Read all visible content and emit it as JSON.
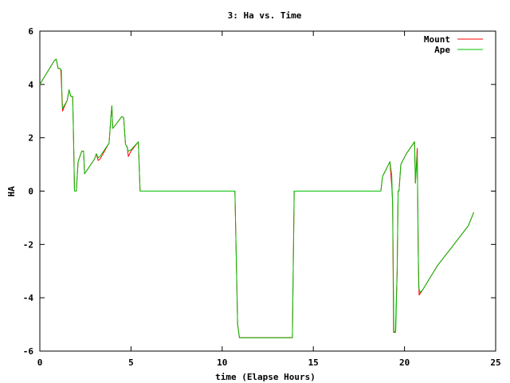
{
  "chart_data": {
    "type": "line",
    "title": "3: Ha vs. Time",
    "xlabel": "time (Elapse Hours)",
    "ylabel": "HA",
    "xlim": [
      0,
      25
    ],
    "ylim": [
      -6,
      6
    ],
    "xticks": [
      0,
      5,
      10,
      15,
      20,
      25
    ],
    "yticks": [
      -6,
      -4,
      -2,
      0,
      2,
      4,
      6
    ],
    "grid": false,
    "legend_position": "top-right",
    "series": [
      {
        "name": "Mount",
        "color": "#ff0000",
        "points": [
          [
            0,
            4.0
          ],
          [
            0.8,
            4.9
          ],
          [
            0.9,
            4.95
          ],
          [
            1.0,
            4.6
          ],
          [
            1.1,
            4.6
          ],
          [
            1.15,
            4.55
          ],
          [
            1.2,
            3.8
          ],
          [
            1.25,
            3.0
          ],
          [
            1.3,
            3.1
          ],
          [
            1.5,
            3.4
          ],
          [
            1.6,
            3.8
          ],
          [
            1.7,
            3.55
          ],
          [
            1.8,
            3.55
          ],
          [
            1.85,
            2.0
          ],
          [
            1.9,
            0.0
          ],
          [
            2.0,
            0.0
          ],
          [
            2.1,
            1.1
          ],
          [
            2.3,
            1.5
          ],
          [
            2.4,
            1.5
          ],
          [
            2.45,
            0.65
          ],
          [
            3.0,
            1.2
          ],
          [
            3.1,
            1.4
          ],
          [
            3.2,
            1.15
          ],
          [
            3.3,
            1.2
          ],
          [
            3.8,
            1.8
          ],
          [
            3.9,
            2.8
          ],
          [
            3.95,
            3.2
          ],
          [
            4.0,
            2.35
          ],
          [
            4.5,
            2.8
          ],
          [
            4.6,
            2.75
          ],
          [
            4.7,
            1.75
          ],
          [
            4.8,
            1.65
          ],
          [
            4.85,
            1.3
          ],
          [
            5.0,
            1.5
          ],
          [
            5.4,
            1.85
          ],
          [
            5.5,
            0.0
          ],
          [
            10.7,
            0.0
          ],
          [
            10.85,
            -5.0
          ],
          [
            10.95,
            -5.5
          ],
          [
            13.85,
            -5.5
          ],
          [
            13.95,
            0.0
          ],
          [
            18.7,
            0.0
          ],
          [
            18.8,
            0.55
          ],
          [
            19.2,
            1.1
          ],
          [
            19.3,
            0.2
          ],
          [
            19.35,
            -0.4
          ],
          [
            19.4,
            -5.3
          ],
          [
            19.5,
            -5.3
          ],
          [
            19.6,
            -3.0
          ],
          [
            19.65,
            0.0
          ],
          [
            19.7,
            0.0
          ],
          [
            19.8,
            1.0
          ],
          [
            20.1,
            1.4
          ],
          [
            20.55,
            1.85
          ],
          [
            20.6,
            0.3
          ],
          [
            20.7,
            1.6
          ],
          [
            20.75,
            -2.3
          ],
          [
            20.8,
            -3.9
          ],
          [
            21.0,
            -3.7
          ],
          [
            21.8,
            -2.8
          ],
          [
            22.6,
            -2.1
          ],
          [
            23.5,
            -1.3
          ],
          [
            23.8,
            -0.8
          ]
        ]
      },
      {
        "name": "Ape",
        "color": "#00c000",
        "points": [
          [
            0,
            4.0
          ],
          [
            0.8,
            4.9
          ],
          [
            0.9,
            4.95
          ],
          [
            1.0,
            4.6
          ],
          [
            1.1,
            4.6
          ],
          [
            1.15,
            4.55
          ],
          [
            1.18,
            4.55
          ],
          [
            1.22,
            3.3
          ],
          [
            1.25,
            3.1
          ],
          [
            1.5,
            3.4
          ],
          [
            1.6,
            3.8
          ],
          [
            1.7,
            3.55
          ],
          [
            1.8,
            3.55
          ],
          [
            1.85,
            2.0
          ],
          [
            1.9,
            0.0
          ],
          [
            2.0,
            0.0
          ],
          [
            2.1,
            1.1
          ],
          [
            2.3,
            1.5
          ],
          [
            2.4,
            1.5
          ],
          [
            2.45,
            0.65
          ],
          [
            3.0,
            1.2
          ],
          [
            3.1,
            1.4
          ],
          [
            3.2,
            1.25
          ],
          [
            3.3,
            1.3
          ],
          [
            3.8,
            1.8
          ],
          [
            3.9,
            2.8
          ],
          [
            3.95,
            3.2
          ],
          [
            4.0,
            2.35
          ],
          [
            4.5,
            2.8
          ],
          [
            4.6,
            2.75
          ],
          [
            4.7,
            1.75
          ],
          [
            4.75,
            1.7
          ],
          [
            4.85,
            1.5
          ],
          [
            5.0,
            1.55
          ],
          [
            5.4,
            1.85
          ],
          [
            5.5,
            0.0
          ],
          [
            10.7,
            0.0
          ],
          [
            10.85,
            -5.0
          ],
          [
            10.95,
            -5.5
          ],
          [
            13.85,
            -5.5
          ],
          [
            13.95,
            0.0
          ],
          [
            18.7,
            0.0
          ],
          [
            18.8,
            0.55
          ],
          [
            19.2,
            1.1
          ],
          [
            19.3,
            0.6
          ],
          [
            19.35,
            -0.5
          ],
          [
            19.42,
            -5.3
          ],
          [
            19.52,
            -5.25
          ],
          [
            19.6,
            -3.0
          ],
          [
            19.65,
            0.0
          ],
          [
            19.7,
            0.0
          ],
          [
            19.8,
            1.0
          ],
          [
            20.1,
            1.4
          ],
          [
            20.55,
            1.85
          ],
          [
            20.6,
            0.3
          ],
          [
            20.7,
            1.4
          ],
          [
            20.78,
            -3.6
          ],
          [
            20.85,
            -3.8
          ],
          [
            21.0,
            -3.7
          ],
          [
            21.8,
            -2.8
          ],
          [
            22.6,
            -2.1
          ],
          [
            23.5,
            -1.3
          ],
          [
            23.8,
            -0.8
          ]
        ]
      }
    ]
  }
}
